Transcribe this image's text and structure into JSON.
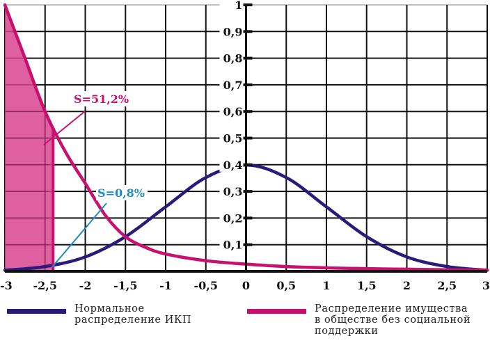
{
  "chart_data": {
    "type": "line",
    "title": "",
    "xlabel": "",
    "ylabel": "",
    "xlim": [
      -3,
      3
    ],
    "ylim": [
      0,
      1
    ],
    "grid": true,
    "x_ticks": [
      "-3",
      "-2,5",
      "-2",
      "-1,5",
      "-1",
      "-0,5",
      "0",
      "0,5",
      "1",
      "1,5",
      "2",
      "2,5",
      "3"
    ],
    "y_ticks": [
      "0,1",
      "0,2",
      "0,3",
      "0,4",
      "0,5",
      "0,6",
      "0,7",
      "0,8",
      "0,9",
      "1"
    ],
    "series": [
      {
        "name": "Нормальное распределение ИКП",
        "color": "#2a1a7a",
        "x": [
          -3,
          -2.5,
          -2,
          -1.5,
          -1,
          -0.5,
          0,
          0.5,
          1,
          1.5,
          2,
          2.5,
          3
        ],
        "values": [
          0.004,
          0.018,
          0.054,
          0.13,
          0.242,
          0.352,
          0.399,
          0.352,
          0.242,
          0.13,
          0.054,
          0.018,
          0.004
        ]
      },
      {
        "name": "Распределение имущества в обществе без социальной поддержки",
        "color": "#c8106e",
        "x": [
          -3,
          -2.75,
          -2.5,
          -2.25,
          -2,
          -1.75,
          -1.5,
          -1.25,
          -1,
          -0.5,
          0,
          0.5,
          1,
          1.5,
          2,
          2.5,
          3
        ],
        "values": [
          1.0,
          0.8,
          0.6,
          0.45,
          0.33,
          0.21,
          0.13,
          0.09,
          0.065,
          0.04,
          0.027,
          0.018,
          0.013,
          0.01,
          0.008,
          0.006,
          0.005
        ]
      }
    ],
    "shaded_regions": [
      {
        "series": "Распределение имущества в обществе без социальной поддержки",
        "x_from": -3,
        "x_to": -2.4,
        "color": "#d9448f"
      }
    ],
    "annotations": [
      {
        "text": "S=51,2%",
        "color": "#c8106e",
        "x": -2.0,
        "y": 0.64
      },
      {
        "text": "S=0,8%",
        "color": "#1e8bc3",
        "x": -1.75,
        "y": 0.29
      }
    ],
    "legend_position": "bottom"
  },
  "legend": {
    "items": [
      {
        "label_line1": "Нормальное",
        "label_line2": "распределение ИКП",
        "color": "#2a1a7a"
      },
      {
        "label_line1": "Распределение имущества",
        "label_line2": "в обществе без социальной",
        "label_line3": "поддержки",
        "color": "#c8106e"
      }
    ]
  }
}
